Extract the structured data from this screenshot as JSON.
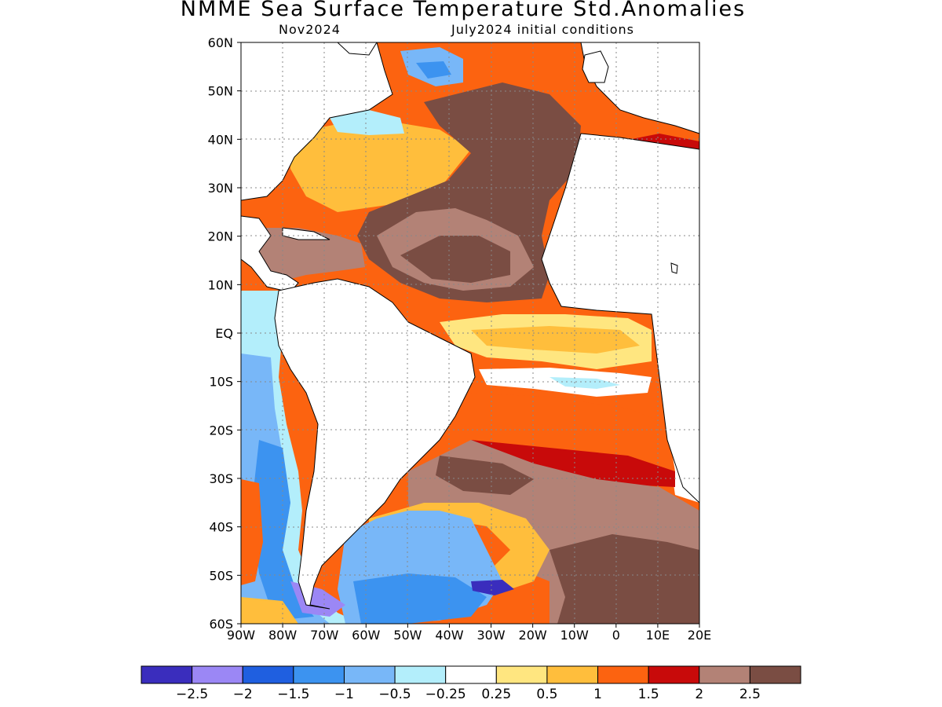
{
  "title": "NMME Sea Surface Temperature Std.Anomalies",
  "subtitle_left": "Nov2024",
  "subtitle_right": "July2024 initial conditions",
  "map": {
    "lon_range": [
      -90,
      20
    ],
    "lat_range": [
      -60,
      60
    ],
    "lat_ticks": [
      "60N",
      "50N",
      "40N",
      "30N",
      "20N",
      "10N",
      "EQ",
      "10S",
      "20S",
      "30S",
      "40S",
      "50S",
      "60S"
    ],
    "lon_ticks": [
      "90W",
      "80W",
      "70W",
      "60W",
      "50W",
      "40W",
      "30W",
      "20W",
      "10W",
      "0",
      "10E",
      "20E"
    ],
    "grid": "dotted"
  },
  "colorbar": {
    "colors": [
      "#3a2dbd",
      "#9b87f5",
      "#1f5fe0",
      "#3c93f0",
      "#78b7f8",
      "#b3eefb",
      "#ffffff",
      "#ffe680",
      "#ffbe3c",
      "#fc6310",
      "#c80a0a",
      "#b38276",
      "#7a4d43"
    ],
    "labels": [
      "-2.5",
      "-2",
      "-1.5",
      "-1",
      "-0.5",
      "-0.25",
      "0.25",
      "0.5",
      "1",
      "1.5",
      "2",
      "2.5"
    ]
  },
  "anomaly_regions": [
    {
      "name": "north-atlantic-brown",
      "level": 2.5,
      "color": "#7a4d43"
    },
    {
      "name": "gulf-stream-warm",
      "level": 1.5,
      "color": "#fc6310"
    },
    {
      "name": "tropical-atlantic-warm",
      "level": 1.0,
      "color": "#ffbe3c"
    },
    {
      "name": "south-atlantic-brown",
      "level": 2.5,
      "color": "#7a4d43"
    },
    {
      "name": "pacific-cool",
      "level": -0.5,
      "color": "#78b7f8"
    },
    {
      "name": "southern-ocean-cool",
      "level": -1.5,
      "color": "#1f5fe0"
    }
  ]
}
